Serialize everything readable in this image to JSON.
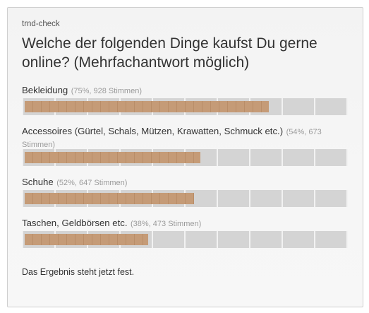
{
  "widget": {
    "brand": "trnd-check",
    "question": "Welche der folgenden Dinge kaufst Du gerne online? (Mehrfachantwort möglich)",
    "options": [
      {
        "label": "Bekleidung",
        "stats": "(75%, 928 Stimmen)",
        "percent": 75
      },
      {
        "label": "Accessoires (Gürtel, Schals, Mützen, Krawatten, Schmuck etc.)",
        "stats": "(54%, 673 Stimmen)",
        "percent": 54
      },
      {
        "label": "Schuhe",
        "stats": "(52%, 647 Stimmen)",
        "percent": 52
      },
      {
        "label": "Taschen, Geldbörsen etc.",
        "stats": "(38%, 473 Stimmen)",
        "percent": 38
      }
    ],
    "result_text": "Das Ergebnis steht jetzt fest.",
    "colors": {
      "bar_fill": "#c59b77",
      "bar_track": "#d4d4d4"
    }
  }
}
